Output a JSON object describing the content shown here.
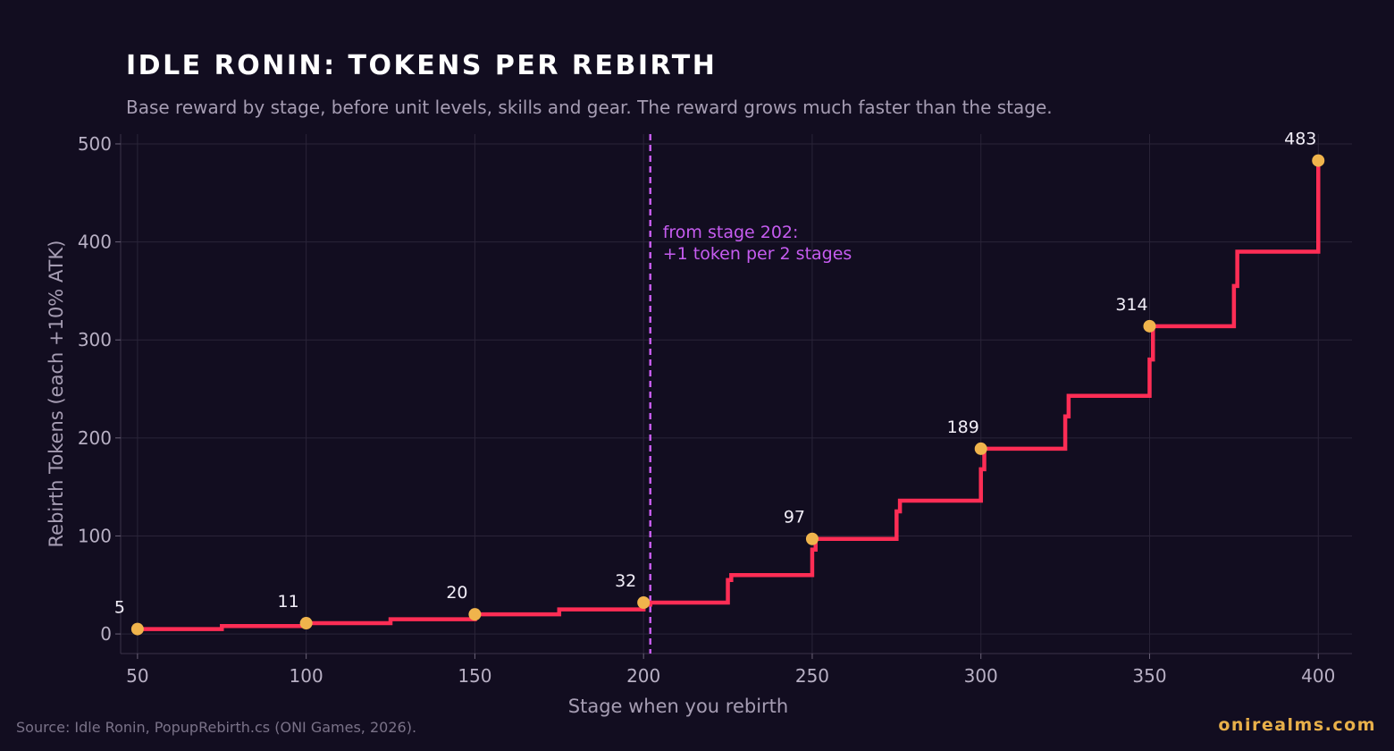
{
  "header": {
    "title": "IDLE RONIN: TOKENS PER REBIRTH",
    "subtitle": "Base reward by stage, before unit levels, skills and gear. The reward grows much faster than the stage."
  },
  "footer": {
    "source": "Source: Idle Ronin, PopupRebirth.cs (ONI Games, 2026).",
    "brand": "onirealms.com"
  },
  "chart_data": {
    "type": "line",
    "title": "IDLE RONIN: TOKENS PER REBIRTH",
    "subtitle": "Base reward by stage, before unit levels, skills and gear. The reward grows much faster than the stage.",
    "xlabel": "Stage when you rebirth",
    "ylabel": "Rebirth Tokens (each +10% ATK)",
    "xlim": [
      45,
      410
    ],
    "ylim": [
      -20,
      510
    ],
    "x_ticks": [
      50,
      100,
      150,
      200,
      250,
      300,
      350,
      400
    ],
    "y_ticks": [
      0,
      100,
      200,
      300,
      400,
      500
    ],
    "grid": true,
    "series": [
      {
        "line_style": "step",
        "color": "#ff2d55",
        "x": [
          50,
          75,
          100,
          125,
          150,
          175,
          200,
          202,
          225,
          226,
          250,
          251,
          275,
          276,
          300,
          301,
          325,
          326,
          350,
          351,
          375,
          376,
          400
        ],
        "y": [
          5,
          8,
          11,
          15,
          20,
          25,
          30,
          32,
          55,
          60,
          86,
          97,
          125,
          136,
          168,
          189,
          222,
          243,
          280,
          314,
          355,
          390,
          433
        ]
      }
    ],
    "markers": {
      "color": "#f0b44c",
      "points": [
        {
          "x": 50,
          "y": 5,
          "label": "5"
        },
        {
          "x": 100,
          "y": 11,
          "label": "11"
        },
        {
          "x": 150,
          "y": 20,
          "label": "20"
        },
        {
          "x": 200,
          "y": 32,
          "label": "32"
        },
        {
          "x": 250,
          "y": 97,
          "label": "97"
        },
        {
          "x": 300,
          "y": 189,
          "label": "189"
        },
        {
          "x": 350,
          "y": 314,
          "label": "314"
        },
        {
          "x": 400,
          "y": 483,
          "label": "483"
        }
      ]
    },
    "reference_line": {
      "x": 202,
      "color": "#c65cf0",
      "style": "dashed",
      "annotation_lines": [
        "from stage 202:",
        "+1 token per 2 stages"
      ]
    }
  }
}
